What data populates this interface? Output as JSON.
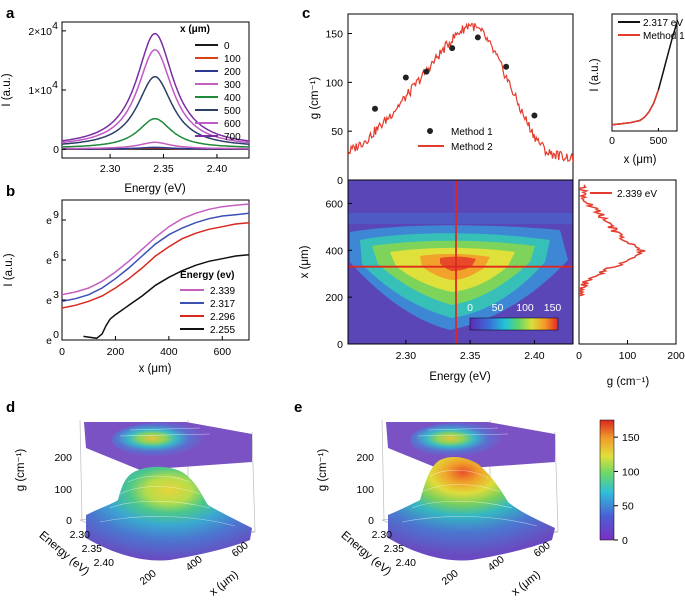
{
  "panels": {
    "a": {
      "label": "a",
      "chart_data": {
        "type": "line",
        "title": "",
        "xlabel": "Energy (eV)",
        "ylabel": "I (a.u.)",
        "xlim": [
          2.255,
          2.43
        ],
        "ylim": [
          -1500,
          21500
        ],
        "x_ticks": [
          2.3,
          2.35,
          2.4
        ],
        "x_tick_labels": [
          "2.30",
          "2.35",
          "2.40"
        ],
        "y_ticks": [
          0,
          10000,
          20000
        ],
        "y_tick_labels": [
          "0",
          "1×10",
          "2×10"
        ],
        "y_tick_exponent": "4",
        "legend_title": "x (μm)",
        "legend_position": "top-right",
        "peak_center": 2.342,
        "series": [
          {
            "name": "0",
            "color": "#1a1a1a",
            "peak": 0,
            "base": 0,
            "width": 0.018
          },
          {
            "name": "100",
            "color": "#d84315",
            "peak": 200,
            "base": 0,
            "width": 0.018
          },
          {
            "name": "200",
            "color": "#2b3990",
            "peak": 300,
            "base": 0,
            "width": 0.018
          },
          {
            "name": "300",
            "color": "#c45fbf",
            "peak": 1100,
            "base": 50,
            "width": 0.018
          },
          {
            "name": "400",
            "color": "#1f8a3a",
            "peak": 5000,
            "base": 150,
            "width": 0.019
          },
          {
            "name": "500",
            "color": "#2c3e66",
            "peak": 12000,
            "base": 250,
            "width": 0.02
          },
          {
            "name": "600",
            "color": "#c058c8",
            "peak": 16500,
            "base": 300,
            "width": 0.02
          },
          {
            "name": "700",
            "color": "#7a2ea3",
            "peak": 19200,
            "base": 350,
            "width": 0.021
          }
        ]
      }
    },
    "b": {
      "label": "b",
      "chart_data": {
        "type": "line",
        "xlabel": "x (μm)",
        "ylabel": "I (a.u.)",
        "xlim": [
          0,
          700
        ],
        "ylim": [
          0,
          10.5
        ],
        "x_ticks": [
          0,
          200,
          400,
          600
        ],
        "y_ticks": [
          0,
          3,
          6,
          9
        ],
        "y_tick_labels": [
          "e",
          "e",
          "e",
          "e"
        ],
        "y_tick_exponents": [
          "0",
          "3",
          "6",
          "9"
        ],
        "legend_title": "Energy (ev)",
        "legend_position": "bottom-right",
        "series": [
          {
            "name": "2.339",
            "color": "#c45fbf",
            "x": [
              0,
              50,
              100,
              150,
              200,
              250,
              300,
              350,
              400,
              450,
              500,
              550,
              600,
              650,
              700
            ],
            "y": [
              3.4,
              3.6,
              3.9,
              4.4,
              5.1,
              5.9,
              6.8,
              7.7,
              8.5,
              9.1,
              9.5,
              9.8,
              10.0,
              10.1,
              10.2
            ]
          },
          {
            "name": "2.317",
            "color": "#3b4fb5",
            "x": [
              0,
              50,
              100,
              150,
              200,
              250,
              300,
              350,
              400,
              450,
              500,
              550,
              600,
              650,
              700
            ],
            "y": [
              2.9,
              3.1,
              3.4,
              3.9,
              4.6,
              5.4,
              6.3,
              7.2,
              7.9,
              8.4,
              8.8,
              9.1,
              9.3,
              9.4,
              9.5
            ]
          },
          {
            "name": "2.296",
            "color": "#d8281f",
            "x": [
              0,
              50,
              100,
              150,
              200,
              250,
              300,
              350,
              400,
              450,
              500,
              550,
              600,
              650,
              700
            ],
            "y": [
              2.4,
              2.6,
              2.9,
              3.3,
              3.9,
              4.6,
              5.4,
              6.3,
              7.0,
              7.6,
              8.0,
              8.3,
              8.5,
              8.7,
              8.8
            ]
          },
          {
            "name": "2.255",
            "color": "#111111",
            "x": [
              80,
              130,
              150,
              165,
              180,
              200,
              250,
              300,
              350,
              400,
              450,
              500,
              550,
              600,
              650,
              700
            ],
            "y": [
              0.2,
              0.1,
              0.4,
              1.2,
              1.6,
              1.9,
              2.6,
              3.3,
              4.1,
              4.7,
              5.2,
              5.6,
              5.9,
              6.1,
              6.3,
              6.4
            ]
          }
        ]
      }
    },
    "c_top": {
      "label": "c",
      "chart_data": {
        "type": "line",
        "xlabel": "",
        "ylabel": "g (cm⁻¹)",
        "xlim": [
          2.255,
          2.43
        ],
        "ylim": [
          0,
          170
        ],
        "y_ticks": [
          0,
          50,
          100,
          150
        ],
        "legend_position": "bottom-right",
        "series": [
          {
            "name": "Method 1",
            "type": "scatter",
            "color": "#222222",
            "x": [
              2.276,
              2.3,
              2.316,
              2.336,
              2.356,
              2.378,
              2.4
            ],
            "y": [
              73,
              105,
              111,
              135,
              146,
              116,
              66
            ]
          },
          {
            "name": "Method 2",
            "type": "line",
            "color": "#e53b2c",
            "x": [
              2.255,
              2.27,
              2.285,
              2.3,
              2.315,
              2.33,
              2.34,
              2.35,
              2.36,
              2.37,
              2.38,
              2.39,
              2.4,
              2.41,
              2.43
            ],
            "y": [
              28,
              42,
              62,
              85,
              110,
              135,
              150,
              160,
              150,
              128,
              100,
              70,
              45,
              28,
              22
            ]
          }
        ]
      }
    },
    "c_inset": {
      "chart_data": {
        "type": "line",
        "xlabel": "x (μm)",
        "ylabel": "I (a.u.)",
        "xlim": [
          0,
          700
        ],
        "ylim": [
          0,
          1
        ],
        "x_ticks": [
          0,
          500
        ],
        "legend_position": "top-left",
        "series": [
          {
            "name": "2.317 eV",
            "color": "#111111",
            "x": [
              0,
              100,
              200,
              300,
              350,
              400,
              450,
              500,
              550,
              600,
              650,
              700
            ],
            "y": [
              0.02,
              0.03,
              0.04,
              0.06,
              0.09,
              0.14,
              0.22,
              0.34,
              0.5,
              0.66,
              0.82,
              0.96
            ]
          },
          {
            "name": "Method 1",
            "color": "#e53b2c",
            "x": [
              0,
              100,
              200,
              300,
              350,
              400,
              450,
              500
            ],
            "y": [
              0.02,
              0.03,
              0.04,
              0.06,
              0.09,
              0.14,
              0.22,
              0.34
            ]
          }
        ]
      }
    },
    "c_map": {
      "chart_data": {
        "type": "heatmap",
        "xlabel": "Energy (eV)",
        "ylabel": "x (μm)",
        "xlim": [
          2.255,
          2.43
        ],
        "ylim": [
          0,
          700
        ],
        "x_ticks": [
          2.3,
          2.35,
          2.4
        ],
        "y_ticks": [
          0,
          200,
          400,
          600
        ],
        "colorbar_ticks": [
          0,
          50,
          100,
          150
        ],
        "colorbar_range": [
          0,
          160
        ],
        "crosshair": {
          "energy": 2.339,
          "x": 330
        },
        "peak": {
          "energy": 2.35,
          "x": 350,
          "g": 160
        }
      }
    },
    "c_right": {
      "chart_data": {
        "type": "line",
        "xlabel": "g (cm⁻¹)",
        "xlim": [
          0,
          200
        ],
        "ylim": [
          0,
          700
        ],
        "x_ticks": [
          0,
          100,
          200
        ],
        "legend_position": "top-right",
        "series": [
          {
            "name": "2.339 eV",
            "color": "#e53b2c",
            "x_pos": [
              200,
              240,
              280,
              320,
              360,
              400,
              440,
              480,
              520,
              560,
              600,
              640,
              680
            ],
            "g": [
              0,
              5,
              20,
              60,
              110,
              130,
              100,
              75,
              60,
              40,
              20,
              10,
              3
            ]
          }
        ]
      }
    },
    "d": {
      "label": "d",
      "chart_data": {
        "type": "surface3d",
        "zlabel": "g (cm⁻¹)",
        "ylabel": "Energy (eV)",
        "xlabel": "x (μm)",
        "z_ticks": [
          0,
          100,
          200
        ],
        "energy_ticks": [
          "2.30",
          "2.35",
          "2.40"
        ],
        "x_ticks": [
          200,
          400,
          600
        ],
        "peak_g": 140
      }
    },
    "e": {
      "label": "e",
      "chart_data": {
        "type": "surface3d",
        "zlabel": "g (cm⁻¹)",
        "ylabel": "Energy (eV)",
        "xlabel": "x (μm)",
        "z_ticks": [
          0,
          100,
          200
        ],
        "energy_ticks": [
          "2.30",
          "2.35",
          "2.40"
        ],
        "x_ticks": [
          200,
          400,
          600
        ],
        "peak_g": 175,
        "colorbar_ticks": [
          0,
          50,
          100,
          150
        ]
      }
    }
  }
}
